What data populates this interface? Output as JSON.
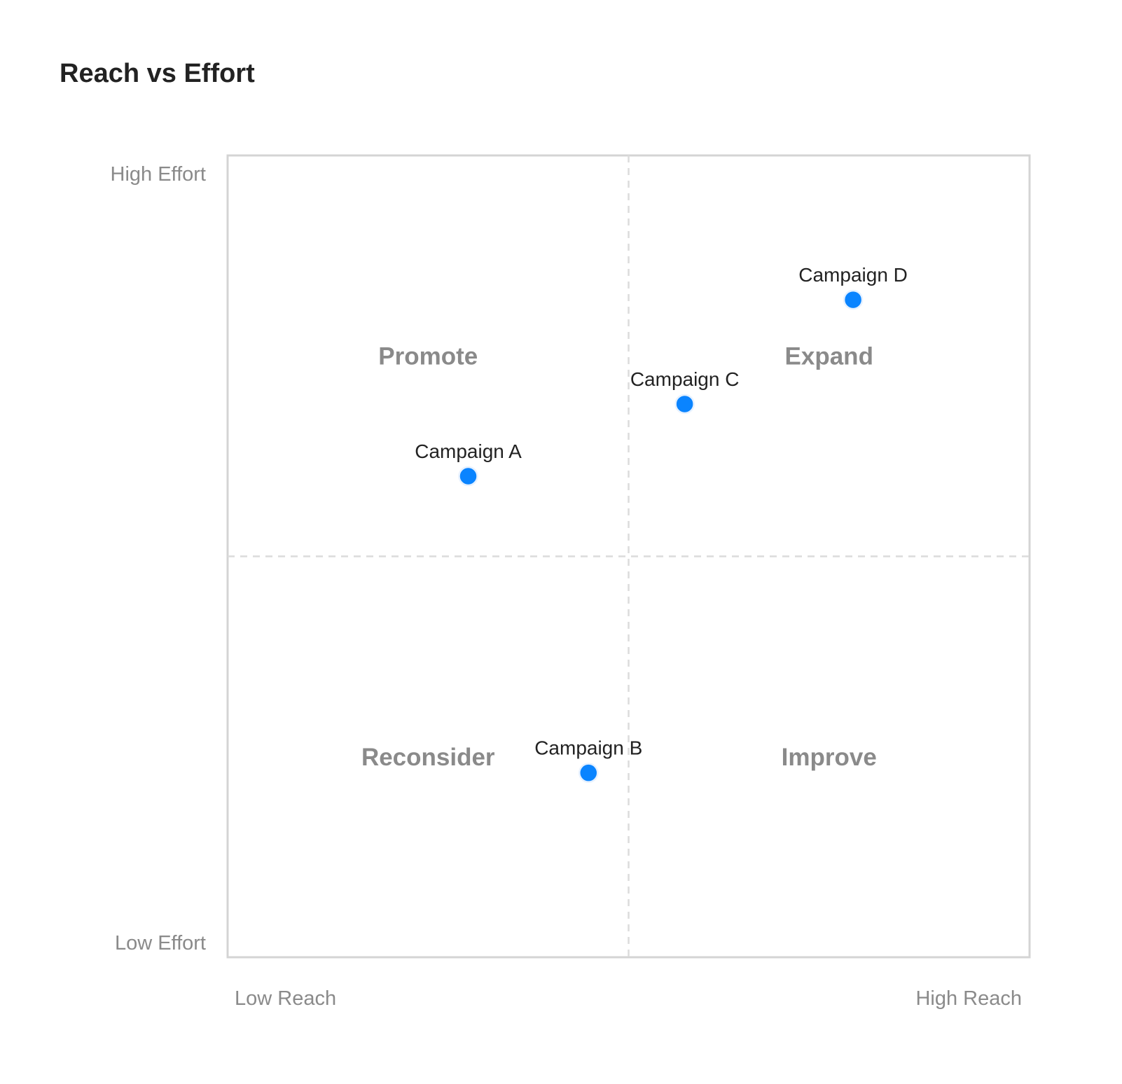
{
  "chart_data": {
    "type": "scatter",
    "title": "Reach vs Effort",
    "x_axis": {
      "low_label": "Low Reach",
      "high_label": "High Reach",
      "range": [
        0,
        1
      ]
    },
    "y_axis": {
      "low_label": "Low Effort",
      "high_label": "High Effort",
      "range": [
        0,
        1
      ]
    },
    "dividers": {
      "x": 0.5,
      "y": 0.5,
      "style": "dashed"
    },
    "quadrants": [
      {
        "key": "top-left",
        "label": "Promote"
      },
      {
        "key": "top-right",
        "label": "Expand"
      },
      {
        "key": "bottom-left",
        "label": "Reconsider"
      },
      {
        "key": "bottom-right",
        "label": "Improve"
      }
    ],
    "points": [
      {
        "label": "Campaign A",
        "x": 0.3,
        "y": 0.6
      },
      {
        "label": "Campaign B",
        "x": 0.45,
        "y": 0.23
      },
      {
        "label": "Campaign C",
        "x": 0.57,
        "y": 0.69
      },
      {
        "label": "Campaign D",
        "x": 0.78,
        "y": 0.82
      }
    ],
    "point_color": "#0a84ff"
  }
}
